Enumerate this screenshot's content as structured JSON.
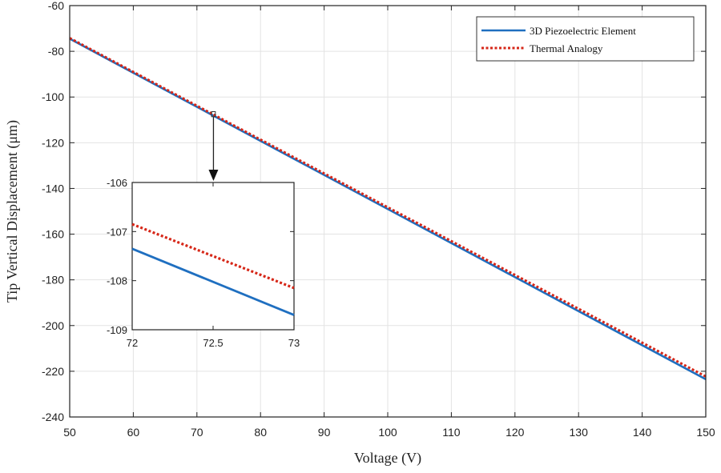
{
  "chart_data": [
    {
      "id": "main",
      "type": "line",
      "title": "",
      "xlabel": "Voltage (V)",
      "ylabel": "Tip Vertical Displacement (μm)",
      "xlim": [
        50,
        150
      ],
      "ylim": [
        -240,
        -60
      ],
      "xticks": [
        50,
        60,
        70,
        80,
        90,
        100,
        110,
        120,
        130,
        140,
        150
      ],
      "yticks": [
        -240,
        -220,
        -200,
        -180,
        -160,
        -140,
        -120,
        -100,
        -80,
        -60
      ],
      "grid": true,
      "legend": "top-right",
      "series": [
        {
          "name": "3D Piezoelectric Element",
          "color": "#1f6fc0",
          "style": "solid",
          "x": [
            50,
            150
          ],
          "y": [
            -74.5,
            -223.5
          ]
        },
        {
          "name": "Thermal Analogy",
          "color": "#d62718",
          "style": "dotted",
          "x": [
            50,
            150
          ],
          "y": [
            -74.2,
            -222.3
          ]
        }
      ]
    },
    {
      "id": "inset",
      "type": "line",
      "title": "",
      "xlabel": "",
      "ylabel": "",
      "xlim": [
        72,
        73
      ],
      "ylim": [
        -109,
        -106
      ],
      "xticks": [
        72,
        72.5,
        73
      ],
      "xtick_labels": [
        "72",
        "72.5",
        "73"
      ],
      "yticks": [
        -109,
        -108,
        -107,
        -106
      ],
      "grid": false,
      "zoom_box": {
        "x": [
          72.3,
          72.9
        ],
        "y": [
          -108.6,
          -106.4
        ]
      },
      "series": [
        {
          "name": "3D Piezoelectric Element",
          "color": "#1f6fc0",
          "style": "solid",
          "x": [
            72,
            73
          ],
          "y": [
            -107.35,
            -108.7
          ]
        },
        {
          "name": "Thermal Analogy",
          "color": "#d62718",
          "style": "dotted",
          "x": [
            72,
            73
          ],
          "y": [
            -106.85,
            -108.15
          ]
        }
      ]
    }
  ]
}
